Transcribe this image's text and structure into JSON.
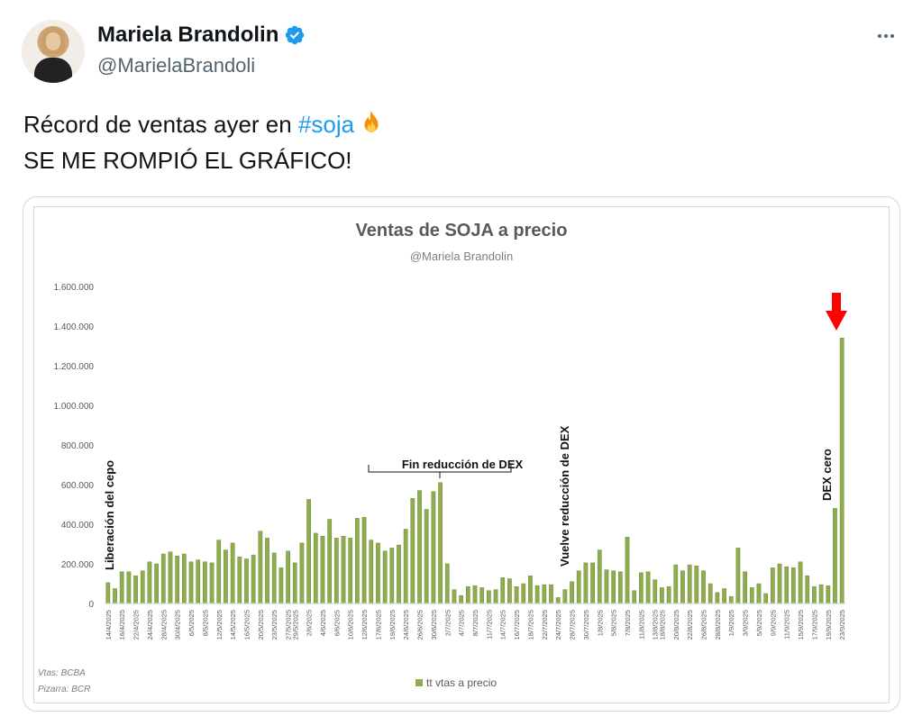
{
  "tweet": {
    "display_name": "Mariela Brandolin",
    "handle": "@MarielaBrandoli",
    "verified_icon": "verified-badge-icon",
    "text_line1_before": "Récord de ventas ayer en ",
    "hashtag": "#soja",
    "fire_icon": "fire-emoji-icon",
    "text_line2": "SE ME ROMPIÓ EL GRÁFICO!",
    "more_icon": "more-options-icon",
    "accent_color": "#1d9bf0"
  },
  "chart_data": {
    "type": "bar",
    "title": "Ventas de SOJA a precio",
    "subtitle": "@Mariela Brandolin",
    "legend": [
      "tt vtas a precio"
    ],
    "legend_position": "bottom",
    "bar_color": "#8fac4f",
    "yticks": [
      "1.600.000",
      "1.400.000",
      "1.200.000",
      "1.000.000",
      "800.000",
      "600.000",
      "400.000",
      "200.000",
      "0"
    ],
    "ylim": [
      0,
      1600000
    ],
    "grid": false,
    "xtick_labels": [
      "14/4/2025",
      "16/4/2025",
      "22/4/2025",
      "24/4/2025",
      "28/4/2025",
      "30/4/2025",
      "6/5/2025",
      "8/5/2025",
      "12/5/2025",
      "14/5/2025",
      "16/5/2025",
      "20/5/2025",
      "23/5/2025",
      "27/5/2025",
      "29/5/2025",
      "2/6/2025",
      "4/6/2025",
      "6/6/2025",
      "10/6/2025",
      "12/6/2025",
      "17/6/2025",
      "19/6/2025",
      "24/6/2025",
      "26/6/2025",
      "30/6/2025",
      "2/7/2025",
      "4/7/2025",
      "8/7/2025",
      "11/7/2025",
      "14/7/2025",
      "16/7/2025",
      "18/7/2025",
      "22/7/2025",
      "24/7/2025",
      "28/7/2025",
      "30/7/2025",
      "1/8/2025",
      "5/8/2025",
      "7/8/2025",
      "11/8/2025",
      "13/8/2025",
      "18/8/2025",
      "20/8/2025",
      "22/8/2025",
      "26/8/2025",
      "28/8/2025",
      "1/9/2025",
      "3/9/2025",
      "5/9/2025",
      "9/9/2025",
      "11/9/2025",
      "15/9/2025",
      "17/9/2025",
      "19/9/2025",
      "23/9/2025"
    ],
    "values": [
      105000,
      75000,
      160000,
      160000,
      140000,
      165000,
      210000,
      200000,
      250000,
      260000,
      240000,
      250000,
      210000,
      220000,
      210000,
      205000,
      320000,
      270000,
      305000,
      235000,
      225000,
      245000,
      365000,
      330000,
      255000,
      180000,
      265000,
      205000,
      305000,
      525000,
      355000,
      340000,
      425000,
      330000,
      340000,
      330000,
      430000,
      435000,
      320000,
      305000,
      265000,
      280000,
      295000,
      375000,
      530000,
      570000,
      475000,
      565000,
      610000,
      200000,
      70000,
      40000,
      85000,
      90000,
      80000,
      65000,
      70000,
      130000,
      125000,
      85000,
      100000,
      140000,
      90000,
      95000,
      95000,
      30000,
      70000,
      110000,
      165000,
      205000,
      205000,
      270000,
      170000,
      165000,
      160000,
      335000,
      65000,
      155000,
      160000,
      120000,
      80000,
      85000,
      195000,
      165000,
      195000,
      190000,
      165000,
      100000,
      55000,
      75000,
      35000,
      280000,
      160000,
      80000,
      100000,
      50000,
      180000,
      200000,
      185000,
      180000,
      210000,
      140000,
      85000,
      95000,
      90000,
      480000,
      1340000
    ],
    "annotations": [
      {
        "text": "Liberación del cepo",
        "orientation": "vertical"
      },
      {
        "text": "Fin reducción de DEX",
        "orientation": "horizontal"
      },
      {
        "text": "Vuelve reducción de DEX",
        "orientation": "vertical"
      },
      {
        "text": "DEX cero",
        "orientation": "vertical"
      }
    ],
    "arrow_color": "#ff0000",
    "source_line1": "Vtas: BCBA",
    "source_line2": "Pizarra: BCR"
  }
}
